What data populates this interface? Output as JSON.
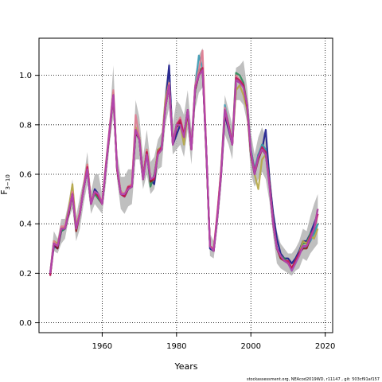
{
  "chart_data": {
    "type": "line",
    "xlabel": "Years",
    "ylabel_base": "F",
    "ylabel_sub": "3−10",
    "xlim": [
      1943,
      2022
    ],
    "ylim": [
      -0.04,
      1.15
    ],
    "xticks": [
      1960,
      1980,
      2000,
      2020
    ],
    "yticks": [
      0.0,
      0.2,
      0.4,
      0.6,
      0.8,
      1.0
    ],
    "ytick_labels": [
      "0.0",
      "0.2",
      "0.4",
      "0.6",
      "0.8",
      "1.0"
    ],
    "grid": true,
    "band_color": "#b4b4b4",
    "x": [
      1946,
      1947,
      1948,
      1949,
      1950,
      1951,
      1952,
      1953,
      1954,
      1955,
      1956,
      1957,
      1958,
      1959,
      1960,
      1961,
      1962,
      1963,
      1964,
      1965,
      1966,
      1967,
      1968,
      1969,
      1970,
      1971,
      1972,
      1973,
      1974,
      1975,
      1976,
      1977,
      1978,
      1979,
      1980,
      1981,
      1982,
      1983,
      1984,
      1985,
      1986,
      1987,
      1988,
      1989,
      1990,
      1991,
      1992,
      1993,
      1994,
      1995,
      1996,
      1997,
      1998,
      1999,
      2000,
      2001,
      2002,
      2003,
      2004,
      2005,
      2006,
      2007,
      2008,
      2009,
      2010,
      2011,
      2012,
      2013,
      2014,
      2015,
      2016,
      2017,
      2018
    ],
    "band_upper": [
      0.23,
      0.37,
      0.34,
      0.42,
      0.42,
      0.49,
      0.58,
      0.43,
      0.51,
      0.58,
      0.69,
      0.53,
      0.6,
      0.6,
      0.52,
      0.68,
      0.82,
      1.04,
      0.69,
      0.59,
      0.59,
      0.62,
      0.62,
      0.9,
      0.83,
      0.67,
      0.78,
      0.65,
      0.67,
      0.74,
      0.77,
      0.95,
      1.06,
      0.8,
      0.9,
      0.88,
      0.84,
      0.94,
      0.78,
      1.0,
      1.08,
      1.11,
      0.8,
      0.36,
      0.33,
      0.48,
      0.68,
      0.92,
      0.86,
      0.8,
      1.03,
      1.04,
      1.06,
      0.95,
      0.77,
      0.68,
      0.75,
      0.79,
      0.75,
      0.63,
      0.47,
      0.37,
      0.32,
      0.3,
      0.28,
      0.28,
      0.3,
      0.33,
      0.38,
      0.37,
      0.43,
      0.48,
      0.52
    ],
    "band_lower": [
      0.18,
      0.29,
      0.28,
      0.32,
      0.34,
      0.42,
      0.46,
      0.33,
      0.38,
      0.48,
      0.56,
      0.44,
      0.48,
      0.46,
      0.44,
      0.56,
      0.72,
      0.84,
      0.58,
      0.46,
      0.44,
      0.47,
      0.48,
      0.66,
      0.66,
      0.54,
      0.6,
      0.52,
      0.54,
      0.62,
      0.63,
      0.8,
      0.87,
      0.68,
      0.7,
      0.72,
      0.67,
      0.78,
      0.64,
      0.86,
      0.93,
      0.95,
      0.6,
      0.27,
      0.26,
      0.38,
      0.54,
      0.76,
      0.72,
      0.66,
      0.9,
      0.9,
      0.88,
      0.81,
      0.6,
      0.55,
      0.58,
      0.61,
      0.58,
      0.49,
      0.35,
      0.24,
      0.22,
      0.21,
      0.2,
      0.19,
      0.21,
      0.22,
      0.26,
      0.25,
      0.28,
      0.3,
      0.32
    ],
    "series": [
      {
        "color": "#1a1a8c",
        "values": [
          0.19,
          0.31,
          0.3,
          0.37,
          0.38,
          0.44,
          0.52,
          0.38,
          0.44,
          0.54,
          0.62,
          0.48,
          0.54,
          0.52,
          0.48,
          0.63,
          0.78,
          0.93,
          0.62,
          0.52,
          0.51,
          0.54,
          0.55,
          0.78,
          0.74,
          0.6,
          0.68,
          0.58,
          0.56,
          0.7,
          0.7,
          0.88,
          1.04,
          0.72,
          0.76,
          0.8,
          0.76,
          0.86,
          0.7,
          0.94,
          1.0,
          1.03,
          0.7,
          0.3,
          0.29,
          0.43,
          0.6,
          0.84,
          0.78,
          0.72,
          0.98,
          0.97,
          0.96,
          0.88,
          0.68,
          0.6,
          0.68,
          0.7,
          0.78,
          0.58,
          0.44,
          0.34,
          0.28,
          0.26,
          0.26,
          0.24,
          0.26,
          0.29,
          0.33,
          0.33,
          0.36,
          0.4,
          0.44
        ]
      },
      {
        "color": "#2e8b57",
        "values": [
          0.2,
          0.32,
          0.31,
          0.37,
          0.38,
          0.45,
          0.52,
          0.38,
          0.44,
          0.54,
          0.62,
          0.49,
          0.52,
          0.5,
          0.48,
          0.63,
          0.77,
          0.92,
          0.62,
          0.53,
          0.52,
          0.54,
          0.56,
          0.77,
          0.75,
          0.58,
          0.7,
          0.55,
          0.6,
          0.69,
          0.71,
          0.87,
          0.96,
          0.73,
          0.8,
          0.82,
          0.76,
          0.86,
          0.71,
          0.94,
          1.02,
          1.03,
          0.69,
          0.31,
          0.29,
          0.43,
          0.61,
          0.86,
          0.8,
          0.73,
          1.01,
          1.0,
          0.97,
          0.88,
          0.7,
          0.62,
          0.66,
          0.72,
          0.7,
          0.56,
          0.4,
          0.3,
          0.27,
          0.26,
          0.24,
          0.22,
          0.25,
          0.28,
          0.32,
          0.32,
          0.36,
          0.36,
          0.4
        ]
      },
      {
        "color": "#3a9bb5",
        "values": [
          0.2,
          0.33,
          0.31,
          0.38,
          0.38,
          0.45,
          0.53,
          0.38,
          0.45,
          0.55,
          0.63,
          0.48,
          0.53,
          0.52,
          0.48,
          0.63,
          0.78,
          0.92,
          0.63,
          0.52,
          0.51,
          0.55,
          0.55,
          0.77,
          0.74,
          0.58,
          0.69,
          0.58,
          0.59,
          0.68,
          0.72,
          0.88,
          0.97,
          0.72,
          0.8,
          0.82,
          0.76,
          0.86,
          0.71,
          0.95,
          1.08,
          1.03,
          0.7,
          0.31,
          0.29,
          0.44,
          0.62,
          0.88,
          0.8,
          0.73,
          0.99,
          0.98,
          0.96,
          0.88,
          0.7,
          0.62,
          0.68,
          0.72,
          0.7,
          0.56,
          0.4,
          0.3,
          0.27,
          0.25,
          0.25,
          0.21,
          0.24,
          0.28,
          0.3,
          0.31,
          0.33,
          0.36,
          0.4
        ]
      },
      {
        "color": "#b5a642",
        "values": [
          0.2,
          0.33,
          0.32,
          0.38,
          0.39,
          0.46,
          0.56,
          0.39,
          0.45,
          0.55,
          0.64,
          0.49,
          0.53,
          0.52,
          0.48,
          0.64,
          0.78,
          0.93,
          0.63,
          0.53,
          0.52,
          0.55,
          0.56,
          0.79,
          0.75,
          0.59,
          0.7,
          0.58,
          0.59,
          0.7,
          0.71,
          0.9,
          0.97,
          0.73,
          0.8,
          0.8,
          0.72,
          0.85,
          0.7,
          0.95,
          1.0,
          1.03,
          0.7,
          0.31,
          0.3,
          0.44,
          0.62,
          0.86,
          0.8,
          0.72,
          0.94,
          0.96,
          0.92,
          0.86,
          0.68,
          0.6,
          0.54,
          0.66,
          0.68,
          0.56,
          0.4,
          0.3,
          0.27,
          0.25,
          0.25,
          0.22,
          0.25,
          0.28,
          0.33,
          0.32,
          0.35,
          0.34,
          0.38
        ]
      },
      {
        "color": "#e07b91",
        "values": [
          0.2,
          0.33,
          0.31,
          0.39,
          0.39,
          0.45,
          0.53,
          0.38,
          0.45,
          0.55,
          0.64,
          0.49,
          0.53,
          0.52,
          0.49,
          0.64,
          0.79,
          0.94,
          0.63,
          0.53,
          0.52,
          0.55,
          0.56,
          0.84,
          0.75,
          0.59,
          0.7,
          0.58,
          0.59,
          0.69,
          0.71,
          0.88,
          0.97,
          0.73,
          0.8,
          0.83,
          0.76,
          0.86,
          0.71,
          0.96,
          1.02,
          1.1,
          0.7,
          0.31,
          0.3,
          0.45,
          0.62,
          0.87,
          0.8,
          0.73,
          1.0,
          0.98,
          0.96,
          0.88,
          0.69,
          0.61,
          0.67,
          0.7,
          0.68,
          0.56,
          0.41,
          0.3,
          0.27,
          0.25,
          0.25,
          0.22,
          0.25,
          0.28,
          0.31,
          0.31,
          0.35,
          0.38,
          0.44
        ]
      },
      {
        "color": "#8b1a1a",
        "values": [
          0.19,
          0.32,
          0.3,
          0.38,
          0.38,
          0.44,
          0.52,
          0.37,
          0.44,
          0.54,
          0.62,
          0.48,
          0.53,
          0.51,
          0.48,
          0.63,
          0.77,
          0.92,
          0.62,
          0.52,
          0.51,
          0.54,
          0.55,
          0.77,
          0.74,
          0.58,
          0.69,
          0.57,
          0.58,
          0.68,
          0.7,
          0.87,
          0.96,
          0.72,
          0.79,
          0.81,
          0.75,
          0.85,
          0.7,
          0.94,
          1.0,
          1.02,
          0.69,
          0.31,
          0.29,
          0.43,
          0.6,
          0.85,
          0.79,
          0.72,
          0.98,
          0.97,
          0.96,
          0.87,
          0.68,
          0.6,
          0.66,
          0.7,
          0.68,
          0.56,
          0.4,
          0.3,
          0.26,
          0.25,
          0.24,
          0.22,
          0.25,
          0.28,
          0.3,
          0.3,
          0.34,
          0.38,
          0.46
        ]
      },
      {
        "color": "#c2185b",
        "values": [
          0.19,
          0.32,
          0.31,
          0.38,
          0.38,
          0.45,
          0.52,
          0.38,
          0.44,
          0.54,
          0.63,
          0.48,
          0.53,
          0.51,
          0.48,
          0.63,
          0.78,
          0.92,
          0.62,
          0.52,
          0.51,
          0.55,
          0.55,
          0.78,
          0.74,
          0.58,
          0.69,
          0.58,
          0.58,
          0.69,
          0.71,
          0.87,
          0.96,
          0.72,
          0.8,
          0.82,
          0.76,
          0.86,
          0.7,
          0.95,
          1.0,
          1.03,
          0.7,
          0.31,
          0.29,
          0.44,
          0.61,
          0.86,
          0.8,
          0.72,
          0.99,
          0.98,
          0.96,
          0.88,
          0.69,
          0.61,
          0.67,
          0.71,
          0.69,
          0.56,
          0.4,
          0.3,
          0.27,
          0.25,
          0.25,
          0.22,
          0.25,
          0.28,
          0.31,
          0.31,
          0.35,
          0.38,
          0.44
        ]
      },
      {
        "color": "#b04ab5",
        "values": [
          0.2,
          0.32,
          0.31,
          0.38,
          0.38,
          0.45,
          0.52,
          0.38,
          0.44,
          0.54,
          0.62,
          0.48,
          0.53,
          0.52,
          0.48,
          0.63,
          0.78,
          0.92,
          0.63,
          0.52,
          0.52,
          0.54,
          0.55,
          0.78,
          0.74,
          0.58,
          0.68,
          0.58,
          0.59,
          0.68,
          0.7,
          0.87,
          0.96,
          0.72,
          0.8,
          0.8,
          0.75,
          0.86,
          0.7,
          0.95,
          1.0,
          1.02,
          0.7,
          0.31,
          0.29,
          0.43,
          0.6,
          0.86,
          0.79,
          0.72,
          0.98,
          0.97,
          0.95,
          0.88,
          0.69,
          0.6,
          0.67,
          0.7,
          0.68,
          0.55,
          0.4,
          0.3,
          0.27,
          0.25,
          0.24,
          0.21,
          0.24,
          0.27,
          0.31,
          0.31,
          0.34,
          0.38,
          0.46
        ]
      }
    ]
  },
  "footer": "stockassessment.org, NEAcod2019WD, r11147 , git: 503cf91af157"
}
